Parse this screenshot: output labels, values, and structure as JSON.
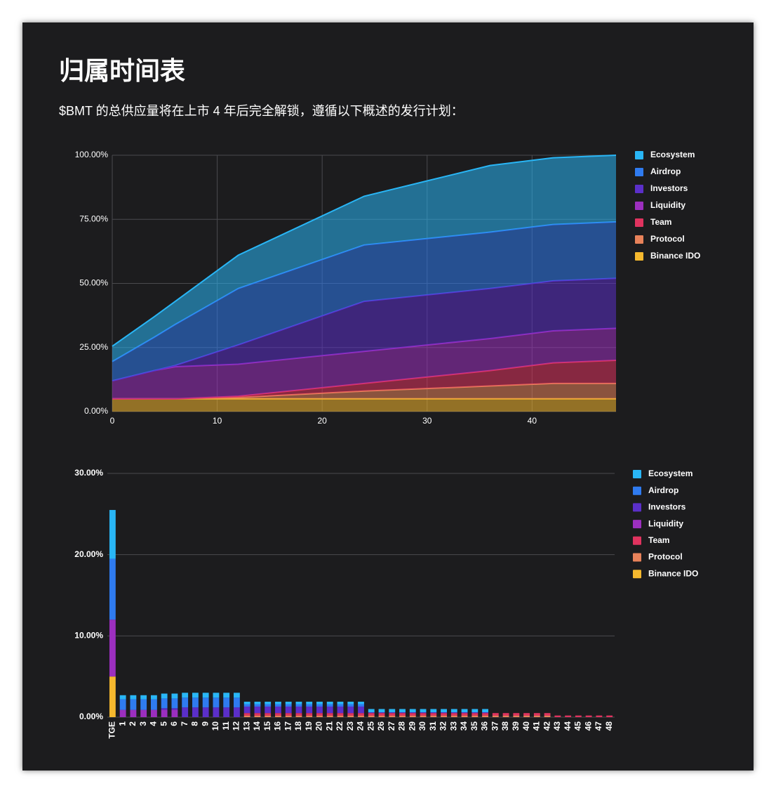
{
  "header": {
    "title": "归属时间表",
    "subtitle": "$BMT 的总供应量将在上市 4 年后完全解锁，遵循以下概述的发行计划："
  },
  "chart_data": [
    {
      "type": "area",
      "stacked": true,
      "grid": true,
      "legend": "right",
      "x": [
        0,
        4,
        6,
        12,
        24,
        36,
        42,
        48
      ],
      "xlim": [
        0,
        48
      ],
      "xticks": [
        0,
        10,
        20,
        30,
        40
      ],
      "ylim": [
        0,
        100
      ],
      "yticks": [
        {
          "value": 0,
          "label": "0.00%"
        },
        {
          "value": 25,
          "label": "25.00%"
        },
        {
          "value": 50,
          "label": "50.00%"
        },
        {
          "value": 75,
          "label": "75.00%"
        },
        {
          "value": 100,
          "label": "100.00%"
        }
      ],
      "series": [
        {
          "name": "Ecosystem",
          "color": "#29b6f6",
          "values": [
            6,
            8,
            9,
            13,
            19,
            26,
            26,
            26
          ]
        },
        {
          "name": "Airdrop",
          "color": "#2f7bf0",
          "values": [
            7.5,
            13,
            16,
            22,
            22,
            22,
            22,
            22
          ]
        },
        {
          "name": "Investors",
          "color": "#5b2fc9",
          "values": [
            0,
            0,
            0.5,
            7.5,
            19.5,
            19.5,
            19.5,
            19.5
          ]
        },
        {
          "name": "Liquidity",
          "color": "#9c2fbf",
          "values": [
            7,
            11,
            12.5,
            12.5,
            12.5,
            12.5,
            12.5,
            12.5
          ]
        },
        {
          "name": "Team",
          "color": "#e0335f",
          "values": [
            0,
            0,
            0,
            0.5,
            3,
            6,
            8,
            9
          ]
        },
        {
          "name": "Protocol",
          "color": "#e8825a",
          "values": [
            0,
            0,
            0,
            0.5,
            3,
            5,
            6,
            6
          ]
        },
        {
          "name": "Binance IDO",
          "color": "#f5b82e",
          "values": [
            5,
            5,
            5,
            5,
            5,
            5,
            5,
            5
          ]
        }
      ]
    },
    {
      "type": "bar",
      "stacked": true,
      "grid": true,
      "legend": "right",
      "categories": [
        "TGE",
        "1",
        "2",
        "3",
        "4",
        "5",
        "6",
        "7",
        "8",
        "9",
        "10",
        "11",
        "12",
        "13",
        "14",
        "15",
        "16",
        "17",
        "18",
        "19",
        "20",
        "21",
        "22",
        "23",
        "24",
        "25",
        "26",
        "27",
        "28",
        "29",
        "30",
        "31",
        "32",
        "33",
        "34",
        "35",
        "36",
        "37",
        "38",
        "39",
        "40",
        "41",
        "42",
        "43",
        "44",
        "45",
        "46",
        "47",
        "48"
      ],
      "ylim": [
        0,
        30
      ],
      "yticks": [
        {
          "value": 0,
          "label": "0.00%"
        },
        {
          "value": 10,
          "label": "10.00%"
        },
        {
          "value": 20,
          "label": "20.00%"
        },
        {
          "value": 30,
          "label": "30.00%"
        }
      ],
      "series": [
        {
          "name": "Ecosystem",
          "color": "#29b6f6",
          "values": [
            6,
            0.5,
            0.5,
            0.5,
            0.5,
            0.6,
            0.6,
            0.6,
            0.6,
            0.6,
            0.6,
            0.6,
            0.6,
            0.3,
            0.3,
            0.3,
            0.3,
            0.3,
            0.3,
            0.3,
            0.3,
            0.3,
            0.3,
            0.3,
            0.3,
            0.4,
            0.4,
            0.4,
            0.4,
            0.4,
            0.4,
            0.4,
            0.4,
            0.4,
            0.4,
            0.4,
            0.4,
            0,
            0,
            0,
            0,
            0,
            0,
            0,
            0,
            0,
            0,
            0,
            0
          ]
        },
        {
          "name": "Airdrop",
          "color": "#2f7bf0",
          "values": [
            7.5,
            1.3,
            1.3,
            1.3,
            1.3,
            1.2,
            1.2,
            1.2,
            1.2,
            1.2,
            1.2,
            1.2,
            1.2,
            0.3,
            0.3,
            0.3,
            0.3,
            0.3,
            0.3,
            0.3,
            0.3,
            0.3,
            0.3,
            0.3,
            0.3,
            0,
            0,
            0,
            0,
            0,
            0,
            0,
            0,
            0,
            0,
            0,
            0,
            0,
            0,
            0,
            0,
            0,
            0,
            0,
            0,
            0,
            0,
            0,
            0
          ]
        },
        {
          "name": "Investors",
          "color": "#5b2fc9",
          "values": [
            0,
            0,
            0,
            0,
            0,
            0.2,
            0.2,
            1.2,
            1.2,
            1.2,
            1.2,
            1.2,
            1.2,
            0.8,
            0.8,
            0.8,
            0.8,
            0.8,
            0.8,
            0.8,
            0.8,
            0.8,
            0.8,
            0.8,
            0.8,
            0.1,
            0.1,
            0.1,
            0.1,
            0.1,
            0.1,
            0.1,
            0.1,
            0.1,
            0.1,
            0.1,
            0.1,
            0,
            0,
            0,
            0,
            0,
            0,
            0,
            0,
            0,
            0,
            0,
            0
          ]
        },
        {
          "name": "Liquidity",
          "color": "#9c2fbf",
          "values": [
            7,
            0.9,
            0.9,
            0.9,
            0.9,
            0.9,
            0.9,
            0,
            0,
            0,
            0,
            0,
            0,
            0,
            0,
            0,
            0,
            0,
            0,
            0,
            0,
            0,
            0,
            0,
            0,
            0,
            0,
            0,
            0,
            0,
            0,
            0,
            0,
            0,
            0,
            0,
            0,
            0,
            0,
            0,
            0,
            0,
            0,
            0,
            0,
            0,
            0,
            0,
            0
          ]
        },
        {
          "name": "Team",
          "color": "#e0335f",
          "values": [
            0,
            0,
            0,
            0,
            0,
            0,
            0,
            0,
            0,
            0,
            0,
            0,
            0,
            0.3,
            0.3,
            0.3,
            0.3,
            0.3,
            0.3,
            0.3,
            0.3,
            0.3,
            0.3,
            0.3,
            0.3,
            0.3,
            0.3,
            0.3,
            0.3,
            0.3,
            0.3,
            0.3,
            0.3,
            0.3,
            0.3,
            0.3,
            0.3,
            0.3,
            0.3,
            0.3,
            0.3,
            0.3,
            0.3,
            0.2,
            0.2,
            0.2,
            0.2,
            0.2,
            0.2
          ]
        },
        {
          "name": "Protocol",
          "color": "#e8825a",
          "values": [
            0,
            0,
            0,
            0,
            0,
            0,
            0,
            0,
            0,
            0,
            0,
            0,
            0,
            0.2,
            0.2,
            0.2,
            0.2,
            0.2,
            0.2,
            0.2,
            0.2,
            0.2,
            0.2,
            0.2,
            0.2,
            0.2,
            0.2,
            0.2,
            0.2,
            0.2,
            0.2,
            0.2,
            0.2,
            0.2,
            0.2,
            0.2,
            0.2,
            0.2,
            0.2,
            0.2,
            0.2,
            0.2,
            0.2,
            0,
            0,
            0,
            0,
            0,
            0
          ]
        },
        {
          "name": "Binance IDO",
          "color": "#f5b82e",
          "values": [
            5,
            0,
            0,
            0,
            0,
            0,
            0,
            0,
            0,
            0,
            0,
            0,
            0,
            0,
            0,
            0,
            0,
            0,
            0,
            0,
            0,
            0,
            0,
            0,
            0,
            0,
            0,
            0,
            0,
            0,
            0,
            0,
            0,
            0,
            0,
            0,
            0,
            0,
            0,
            0,
            0,
            0,
            0,
            0,
            0,
            0,
            0,
            0,
            0
          ]
        }
      ]
    }
  ]
}
